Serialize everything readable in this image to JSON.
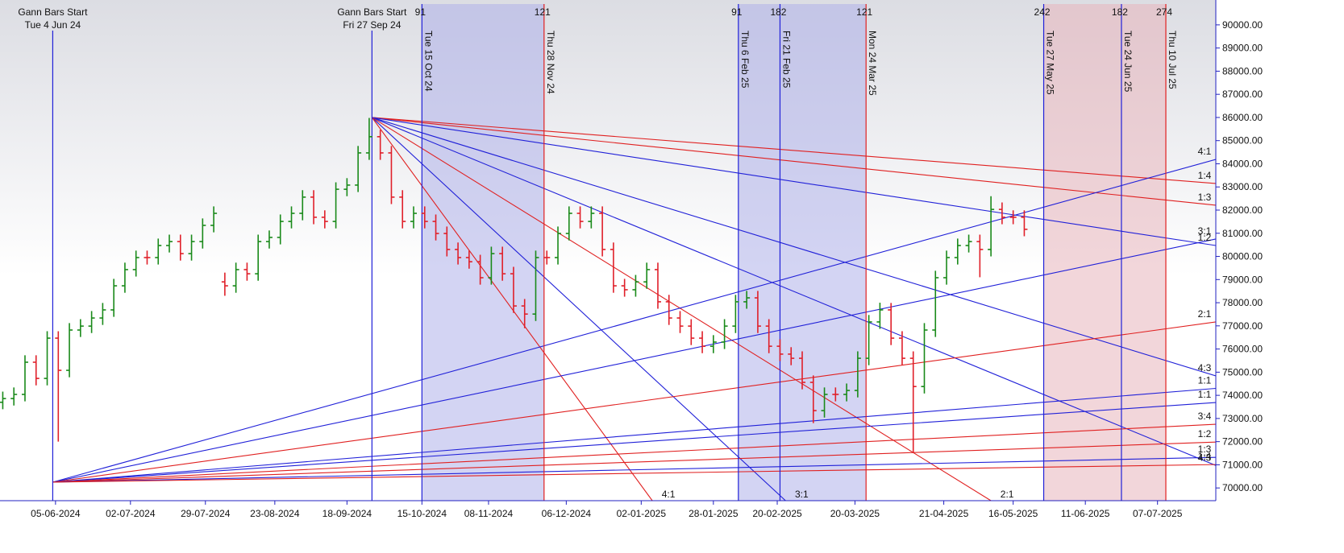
{
  "chart_data": {
    "type": "ohlc",
    "x": [
      "2024-05-17",
      "2024-05-21",
      "2024-05-25",
      "2024-05-29",
      "2024-06-02",
      "2024-06-06",
      "2024-06-10",
      "2024-06-14",
      "2024-06-18",
      "2024-06-22",
      "2024-06-26",
      "2024-06-30",
      "2024-07-04",
      "2024-07-08",
      "2024-07-12",
      "2024-07-16",
      "2024-07-20",
      "2024-07-24",
      "2024-07-28",
      "2024-08-01",
      "2024-08-05",
      "2024-08-09",
      "2024-08-13",
      "2024-08-17",
      "2024-08-21",
      "2024-08-25",
      "2024-08-29",
      "2024-09-02",
      "2024-09-06",
      "2024-09-10",
      "2024-09-14",
      "2024-09-18",
      "2024-09-22",
      "2024-09-26",
      "2024-09-30",
      "2024-10-04",
      "2024-10-08",
      "2024-10-12",
      "2024-10-16",
      "2024-10-20",
      "2024-10-24",
      "2024-10-28",
      "2024-11-01",
      "2024-11-05",
      "2024-11-09",
      "2024-11-13",
      "2024-11-17",
      "2024-11-21",
      "2024-11-25",
      "2024-11-29",
      "2024-12-03",
      "2024-12-07",
      "2024-12-11",
      "2024-12-15",
      "2024-12-19",
      "2024-12-23",
      "2024-12-27",
      "2024-12-31",
      "2025-01-04",
      "2025-01-08",
      "2025-01-12",
      "2025-01-16",
      "2025-01-20",
      "2025-01-24",
      "2025-01-28",
      "2025-02-01",
      "2025-02-05",
      "2025-02-09",
      "2025-02-13",
      "2025-02-17",
      "2025-02-21",
      "2025-02-25",
      "2025-03-01",
      "2025-03-05",
      "2025-03-09",
      "2025-03-13",
      "2025-03-17",
      "2025-03-21",
      "2025-03-25",
      "2025-03-29",
      "2025-04-02",
      "2025-04-06",
      "2025-04-10",
      "2025-04-14",
      "2025-04-18",
      "2025-04-22",
      "2025-04-26",
      "2025-04-30",
      "2025-05-04",
      "2025-05-08",
      "2025-05-12",
      "2025-05-16",
      "2025-05-20"
    ],
    "open": [
      73700,
      73860,
      74040,
      75430,
      74730,
      76470,
      75080,
      76820,
      76990,
      77340,
      77690,
      78730,
      79430,
      79950,
      79950,
      80470,
      80640,
      80120,
      80640,
      81340,
      78900,
      78730,
      79430,
      79250,
      80640,
      80820,
      81510,
      81860,
      82560,
      81690,
      81510,
      82900,
      83080,
      84470,
      85170,
      84470,
      82560,
      81510,
      81860,
      81510,
      80990,
      80300,
      79950,
      79770,
      79080,
      80120,
      79250,
      77860,
      77510,
      79950,
      79950,
      80990,
      81860,
      81510,
      81860,
      80300,
      78730,
      78560,
      78900,
      79430,
      78040,
      77340,
      76990,
      76470,
      76120,
      76300,
      76990,
      78040,
      78210,
      76990,
      76120,
      75780,
      75600,
      74560,
      73340,
      74040,
      74040,
      74210,
      75600,
      77170,
      77690,
      76470,
      75600,
      74380,
      76820,
      79080,
      79950,
      80470,
      80640,
      80300,
      82030,
      81690,
      81690
    ],
    "high": [
      74160,
      74340,
      75730,
      75730,
      76770,
      76770,
      77120,
      77290,
      77640,
      77990,
      79030,
      79730,
      80250,
      80250,
      80770,
      80940,
      80940,
      80940,
      81640,
      82160,
      79300,
      79730,
      79730,
      80940,
      81120,
      81810,
      82160,
      82860,
      82860,
      81990,
      83200,
      83380,
      84770,
      85980,
      85470,
      84770,
      82860,
      82160,
      82160,
      81810,
      81290,
      80600,
      80250,
      80070,
      80420,
      80420,
      79550,
      78160,
      80250,
      80250,
      81290,
      82160,
      82160,
      82160,
      82160,
      80600,
      79030,
      79200,
      79730,
      79730,
      78340,
      77640,
      77290,
      76770,
      76600,
      77290,
      78340,
      78510,
      78510,
      77290,
      76420,
      76080,
      75900,
      74860,
      74340,
      74340,
      74510,
      75900,
      77470,
      78000,
      77990,
      76770,
      75900,
      77120,
      79380,
      80250,
      80770,
      80940,
      80940,
      82600,
      82330,
      81990,
      81990
    ],
    "low": [
      73400,
      73560,
      73740,
      74430,
      74430,
      72000,
      74780,
      76520,
      76690,
      77040,
      77390,
      78430,
      79130,
      79650,
      79650,
      80170,
      79820,
      79820,
      80340,
      81040,
      78300,
      78430,
      78950,
      78950,
      80340,
      80520,
      81210,
      81560,
      81390,
      81210,
      81210,
      82600,
      82780,
      84170,
      84170,
      82260,
      81210,
      81210,
      81210,
      80690,
      80000,
      79650,
      79470,
      78780,
      78780,
      78950,
      77560,
      76900,
      77210,
      79650,
      79650,
      80690,
      81210,
      81210,
      80000,
      78430,
      78260,
      78260,
      78600,
      77740,
      77040,
      76690,
      76170,
      75820,
      75820,
      76000,
      76690,
      77740,
      76690,
      75820,
      75480,
      75300,
      74260,
      72800,
      73040,
      73740,
      73740,
      73910,
      75300,
      76870,
      76170,
      75300,
      71500,
      74080,
      76520,
      78780,
      79650,
      80170,
      79100,
      80000,
      81390,
      81390,
      80870
    ],
    "close": [
      73860,
      74040,
      75430,
      74730,
      76470,
      75080,
      76820,
      76990,
      77340,
      77690,
      78730,
      79430,
      79950,
      79950,
      80470,
      80640,
      80120,
      80640,
      81340,
      81860,
      78730,
      79430,
      79250,
      80640,
      80820,
      81510,
      81860,
      82560,
      81690,
      81510,
      82900,
      83080,
      84470,
      85170,
      84470,
      82560,
      81510,
      81860,
      81510,
      80990,
      80300,
      79950,
      79770,
      79080,
      80120,
      79250,
      77860,
      77510,
      79950,
      79950,
      80990,
      81860,
      81510,
      81860,
      80300,
      78730,
      78560,
      78900,
      79430,
      78040,
      77340,
      76990,
      76470,
      76120,
      76300,
      76990,
      78040,
      78210,
      76990,
      76120,
      75780,
      75600,
      74560,
      73340,
      74040,
      74040,
      74210,
      75600,
      77170,
      77690,
      76470,
      75600,
      74380,
      76820,
      79080,
      79950,
      80470,
      80640,
      80300,
      82030,
      81690,
      81690,
      81170
    ],
    "up_color": "#1a8a1a",
    "down_color": "#e0202a",
    "xlim": [
      "2024-05-16",
      "2025-07-28"
    ],
    "xticks": [
      {
        "value": "2024-06-05",
        "label": "05-06-2024"
      },
      {
        "value": "2024-07-02",
        "label": "02-07-2024"
      },
      {
        "value": "2024-07-29",
        "label": "29-07-2024"
      },
      {
        "value": "2024-08-23",
        "label": "23-08-2024"
      },
      {
        "value": "2024-09-18",
        "label": "18-09-2024"
      },
      {
        "value": "2024-10-15",
        "label": "15-10-2024"
      },
      {
        "value": "2024-11-08",
        "label": "08-11-2024"
      },
      {
        "value": "2024-12-06",
        "label": "06-12-2024"
      },
      {
        "value": "2025-01-02",
        "label": "02-01-2025"
      },
      {
        "value": "2025-01-28",
        "label": "28-01-2025"
      },
      {
        "value": "2025-02-20",
        "label": "20-02-2025"
      },
      {
        "value": "2025-03-20",
        "label": "20-03-2025"
      },
      {
        "value": "2025-04-21",
        "label": "21-04-2025"
      },
      {
        "value": "2025-05-16",
        "label": "16-05-2025"
      },
      {
        "value": "2025-06-11",
        "label": "11-06-2025"
      },
      {
        "value": "2025-07-07",
        "label": "07-07-2025"
      }
    ],
    "ylim": [
      69450,
      90900
    ],
    "yticks": [
      {
        "value": 70000,
        "label": "70000.00"
      },
      {
        "value": 71000,
        "label": "71000.00"
      },
      {
        "value": 72000,
        "label": "72000.00"
      },
      {
        "value": 73000,
        "label": "73000.00"
      },
      {
        "value": 74000,
        "label": "74000.00"
      },
      {
        "value": 75000,
        "label": "75000.00"
      },
      {
        "value": 76000,
        "label": "76000.00"
      },
      {
        "value": 77000,
        "label": "77000.00"
      },
      {
        "value": 78000,
        "label": "78000.00"
      },
      {
        "value": 79000,
        "label": "79000.00"
      },
      {
        "value": 80000,
        "label": "80000.00"
      },
      {
        "value": 81000,
        "label": "81000.00"
      },
      {
        "value": 82000,
        "label": "82000.00"
      },
      {
        "value": 83000,
        "label": "83000.00"
      },
      {
        "value": 84000,
        "label": "84000.00"
      },
      {
        "value": 85000,
        "label": "85000.00"
      },
      {
        "value": 86000,
        "label": "86000.00"
      },
      {
        "value": 87000,
        "label": "87000.00"
      },
      {
        "value": 88000,
        "label": "88000.00"
      },
      {
        "value": 89000,
        "label": "89000.00"
      },
      {
        "value": 90000,
        "label": "90000.00"
      }
    ],
    "bands": [
      {
        "from": "2024-10-15",
        "to": "2024-11-28",
        "color": "#aeb0ea"
      },
      {
        "from": "2025-02-06",
        "to": "2025-03-24",
        "color": "#aeb0ea"
      },
      {
        "from": "2025-05-27",
        "to": "2025-07-10",
        "color": "#e8b4bc"
      }
    ],
    "verticals": [
      {
        "date": "2024-06-04",
        "color": "#2020d8",
        "title": "Gann Bars Start",
        "label": "Tue 4 Jun 24"
      },
      {
        "date": "2024-09-27",
        "color": "#2020d8",
        "title": "Gann Bars Start",
        "label": "Fri 27 Sep 24"
      },
      {
        "date": "2024-10-15",
        "color": "#2020d8",
        "label": "Tue 15 Oct 24",
        "count": 91
      },
      {
        "date": "2024-11-28",
        "color": "#e02020",
        "label": "Thu 28 Nov 24",
        "count": 121
      },
      {
        "date": "2025-02-06",
        "color": "#2020d8",
        "label": "Thu 6 Feb 25",
        "count": 91
      },
      {
        "date": "2025-02-21",
        "color": "#2020d8",
        "label": "Fri 21 Feb 25",
        "count": 182
      },
      {
        "date": "2025-03-24",
        "color": "#e02020",
        "label": "Mon 24 Mar 25",
        "count": 121
      },
      {
        "date": "2025-05-27",
        "color": "#2020d8",
        "label": "Tue 27 May 25",
        "count": 242
      },
      {
        "date": "2025-06-24",
        "color": "#2020d8",
        "label": "Tue 24 Jun 25",
        "count": 182
      },
      {
        "date": "2025-07-10",
        "color": "#e02020",
        "label": "Thu 10 Jul 25",
        "count": 274
      }
    ],
    "fans": [
      {
        "origin": [
          "2024-09-27",
          86000
        ],
        "lines": [
          {
            "label": "1:4",
            "color": "#e02020",
            "end": [
              "2025-07-28",
              83150
            ]
          },
          {
            "label": "1:3",
            "color": "#e02020",
            "end": [
              "2025-07-28",
              82210
            ]
          },
          {
            "label": "1:2",
            "color": "#2020d8",
            "end": [
              "2025-07-28",
              80470
            ]
          },
          {
            "label": "4:3",
            "color": "#2020d8",
            "end": [
              "2025-07-28",
              74840
            ]
          },
          {
            "label": "4:3",
            "color": "#2020d8",
            "end": [
              "2025-07-28",
              70970
            ]
          },
          {
            "label": "2:1",
            "color": "#e02020",
            "end": [
              "2025-05-08",
              69450
            ]
          },
          {
            "label": "3:1",
            "color": "#2020d8",
            "end": [
              "2025-02-23",
              69450
            ]
          },
          {
            "label": "4:1",
            "color": "#e02020",
            "end": [
              "2025-01-06",
              69450
            ]
          }
        ]
      },
      {
        "origin": [
          "2024-06-04",
          70250
        ],
        "lines": [
          {
            "label": "4:1",
            "color": "#2020d8",
            "end": [
              "2025-07-28",
              84190
            ]
          },
          {
            "label": "3:1",
            "color": "#2020d8",
            "end": [
              "2025-07-28",
              80750
            ]
          },
          {
            "label": "2:1",
            "color": "#e02020",
            "end": [
              "2025-07-28",
              77170
            ]
          },
          {
            "label": "1:1",
            "color": "#2020d8",
            "end": [
              "2025-07-28",
              74300
            ]
          },
          {
            "label": "1:1",
            "color": "#2020d8",
            "end": [
              "2025-07-28",
              73690
            ]
          },
          {
            "label": "3:4",
            "color": "#e02020",
            "end": [
              "2025-07-28",
              72750
            ]
          },
          {
            "label": "1:2",
            "color": "#e02020",
            "end": [
              "2025-07-28",
              71980
            ]
          },
          {
            "label": "1:3",
            "color": "#2020d8",
            "end": [
              "2025-07-28",
              71320
            ]
          },
          {
            "label": "1:4",
            "color": "#e02020",
            "end": [
              "2025-07-28",
              71010
            ]
          }
        ]
      }
    ]
  }
}
